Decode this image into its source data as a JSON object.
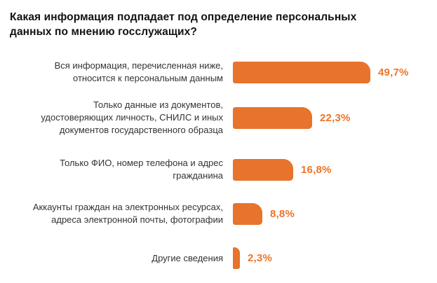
{
  "title": "Какая информация подпадает под определение персональных\nданных по мнению госслужащих?",
  "chart_data": {
    "type": "bar",
    "orientation": "horizontal",
    "title": "Какая информация подпадает под определение персональных данных по мнению госслужащих?",
    "categories": [
      "Вся информация, перечисленная ниже,\nотносится к персональным данным",
      "Только данные из документов,\nудостоверяющих личность, СНИЛС и иных\nдокументов государственного образца",
      "Только ФИО, номер телефона и адрес\nгражданина",
      "Аккаунты граждан на электронных ресурсах,\nадреса электронной почты, фотографии",
      "Другие сведения"
    ],
    "values": [
      49.7,
      22.3,
      16.8,
      8.8,
      2.3
    ],
    "value_labels": [
      "49,7%",
      "22,3%",
      "16,8%",
      "8,8%",
      "2,3%"
    ],
    "xlabel": "",
    "ylabel": "",
    "xlim": [
      0,
      55
    ],
    "grid": false,
    "legend": "none",
    "axes_shown": false,
    "bar_color": "#E8732C",
    "value_label_color": "#ED7428",
    "label_text_color": "#333333",
    "title_color": "#121212",
    "background_color": "#FFFFFF"
  }
}
